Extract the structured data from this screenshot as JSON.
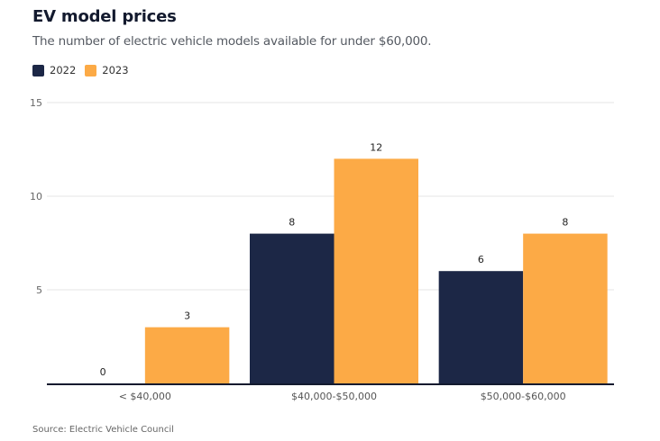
{
  "header": {
    "title": "EV model prices",
    "subtitle": "The number of electric vehicle models available for under $60,000."
  },
  "legend": [
    {
      "label": "2022",
      "color": "#1c2746"
    },
    {
      "label": "2023",
      "color": "#fcaa46"
    }
  ],
  "source": "Source: Electric Vehicle Council",
  "chart_data": {
    "type": "bar",
    "title": "EV model prices",
    "subtitle": "The number of electric vehicle models available for under $60,000.",
    "xlabel": "",
    "ylabel": "",
    "categories": [
      "< $40,000",
      "$40,000-$50,000",
      "$50,000-$60,000"
    ],
    "series": [
      {
        "name": "2022",
        "color": "#1c2746",
        "values": [
          0,
          8,
          6
        ]
      },
      {
        "name": "2023",
        "color": "#fcaa46",
        "values": [
          3,
          12,
          8
        ]
      }
    ],
    "ylim": [
      0,
      15
    ],
    "yticks": [
      5,
      10,
      15
    ],
    "grid": true,
    "legend_position": "top-left",
    "data_labels": true
  }
}
